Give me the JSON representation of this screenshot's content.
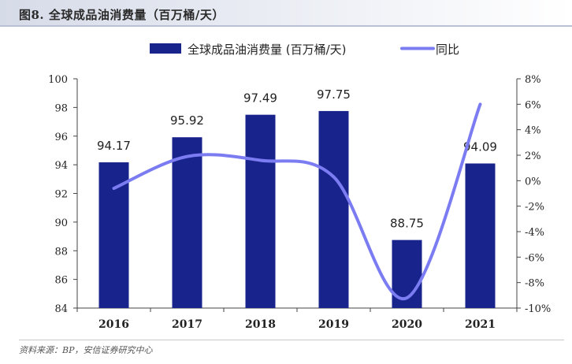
{
  "page": {
    "title": "图8. 全球成品油消费量（百万桶/天）",
    "source": "资料来源：BP，安信证券研究中心"
  },
  "colors": {
    "bar": "#18248c",
    "line": "#7b7cf2",
    "axis": "#444444",
    "header": "#d6dbe8"
  },
  "chart_data": {
    "type": "bar",
    "categories": [
      "2016",
      "2017",
      "2018",
      "2019",
      "2020",
      "2021"
    ],
    "series": [
      {
        "name": "全球成品油消费量 (百万桶/天)",
        "type": "bar",
        "axis": "left",
        "values": [
          94.17,
          95.92,
          97.49,
          97.75,
          88.75,
          94.09
        ]
      },
      {
        "name": "同比",
        "type": "line",
        "axis": "right",
        "smooth": true,
        "values": [
          -0.6,
          1.9,
          1.6,
          0.3,
          -9.2,
          6.0
        ]
      }
    ],
    "data_labels": [
      "94.17",
      "95.92",
      "97.49",
      "97.75",
      "88.75",
      "94.09"
    ],
    "ylim": [
      84,
      100
    ],
    "yticks": [
      84,
      86,
      88,
      90,
      92,
      94,
      96,
      98,
      100
    ],
    "ylim_right": [
      -10,
      8
    ],
    "yticks_right": [
      "-10%",
      "-8%",
      "-6%",
      "-4%",
      "-2%",
      "0%",
      "2%",
      "4%",
      "6%",
      "8%"
    ],
    "legend_position": "top",
    "grid": false
  }
}
